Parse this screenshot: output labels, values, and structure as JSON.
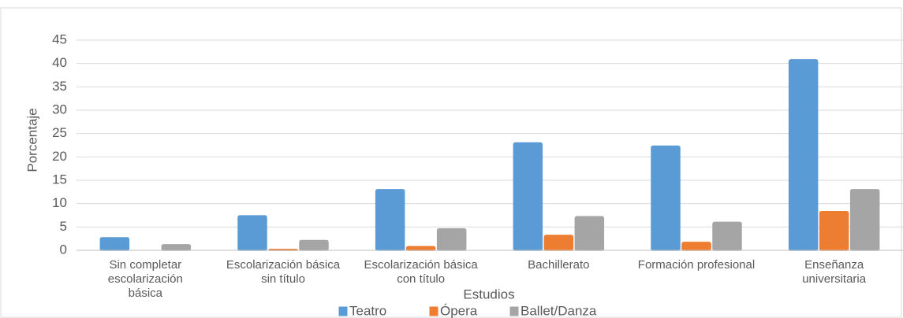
{
  "chart_data": {
    "type": "bar",
    "x_label": "Estudios",
    "y_label": "Porcentaje",
    "categories": [
      "Sin completar escolarización básica",
      "Escolarización básica sin título",
      "Escolarización básica con título",
      "Bachillerato",
      "Formación profesional",
      "Enseñanza universitaria"
    ],
    "series": [
      {
        "name": "Teatro",
        "color": "#5b9bd5",
        "values": [
          2.7,
          7.4,
          13,
          23,
          22.3,
          40.8
        ]
      },
      {
        "name": "Ópera",
        "color": "#ed7d31",
        "values": [
          0,
          0.2,
          0.8,
          3.2,
          1.7,
          8.3
        ]
      },
      {
        "name": "Ballet/Danza",
        "color": "#a5a5a5",
        "values": [
          1.2,
          2.1,
          4.6,
          7.2,
          6,
          13
        ]
      }
    ],
    "ylim": [
      0,
      45
    ],
    "yticks": [
      0,
      5,
      10,
      15,
      20,
      25,
      30,
      35,
      40,
      45
    ],
    "grid": true
  }
}
